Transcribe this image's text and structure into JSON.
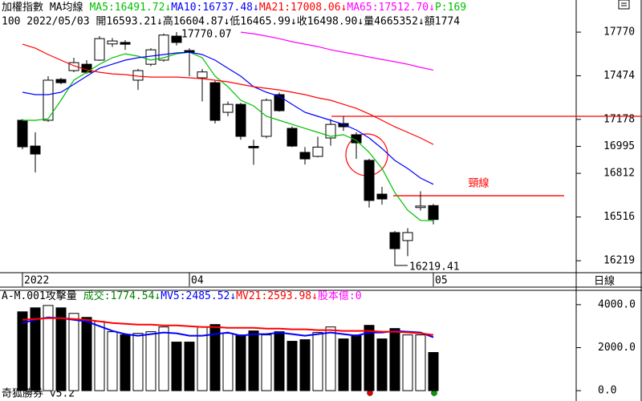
{
  "header": {
    "title": "加權指數 MA均線",
    "extra": "P:169",
    "quote": "100 2022/05/03 開16593.21↓高16604.87↓低16465.99↓收16498.90↓量4665352↓額1774",
    "period": "日線",
    "footer": "奇狐勝券 v5.2"
  },
  "chart_data": [
    {
      "type": "candlestick",
      "categories": [
        "2022",
        null,
        null,
        null,
        null,
        null,
        null,
        null,
        null,
        null,
        null,
        null,
        null,
        "04",
        null,
        null,
        null,
        null,
        null,
        null,
        null,
        null,
        null,
        null,
        null,
        null,
        null,
        null,
        null,
        null,
        null,
        null,
        "05"
      ],
      "open": [
        17172,
        16997,
        17172,
        17449,
        17509,
        17552,
        17580,
        17690,
        17700,
        17444,
        17552,
        17580,
        17743,
        17645,
        17460,
        17427,
        17226,
        17280,
        16995,
        17063,
        17346,
        17117,
        16954,
        16927,
        17052,
        17150,
        17074,
        16900,
        16671,
        16410,
        16356,
        16580,
        16593.21
      ],
      "high": [
        17180,
        17090,
        17471,
        17460,
        17596,
        17580,
        17743,
        17730,
        17716,
        17520,
        17661,
        17760,
        17770.07,
        17660,
        17520,
        17440,
        17300,
        17290,
        17040,
        17320,
        17360,
        17130,
        16990,
        17060,
        17180,
        17200,
        17090,
        16910,
        16720,
        16420,
        16440,
        16690,
        16604.87
      ],
      "low": [
        16975,
        16818,
        17160,
        17416,
        17498,
        17487,
        17575,
        17670,
        17650,
        17378,
        17540,
        17570,
        17680,
        17471,
        17300,
        17150,
        17200,
        17040,
        16870,
        17050,
        17230,
        16990,
        16872,
        16920,
        17000,
        17100,
        16910,
        16580,
        16600,
        16219.41,
        16250,
        16560,
        16465.99
      ],
      "close": [
        16992,
        16943,
        17444,
        17427,
        17563,
        17498,
        17726,
        17710,
        17688,
        17509,
        17650,
        17750,
        17700,
        17634,
        17500,
        17172,
        17280,
        17063,
        16985,
        17308,
        17237,
        16997,
        16910,
        16990,
        17144,
        17128,
        17019,
        16628,
        16638,
        16301,
        16410,
        16590,
        16498.9
      ],
      "up_color": "#ffffff",
      "down_color": "#000000",
      "series": [
        {
          "name": "MA5:16491.72↓",
          "color": "#00c000",
          "values": [
            17172,
            17172,
            17182,
            17308,
            17444,
            17498,
            17552,
            17596,
            17623,
            17607,
            17580,
            17596,
            17623,
            17634,
            17596,
            17471,
            17400,
            17308,
            17270,
            17199,
            17172,
            17144,
            17117,
            17090,
            17063,
            17074,
            17036,
            16954,
            16845,
            16682,
            16562,
            16492,
            16491.72
          ]
        },
        {
          "name": "MA10:16737.48↓",
          "color": "#0000ff",
          "values": [
            17362,
            17346,
            17346,
            17362,
            17416,
            17471,
            17525,
            17552,
            17580,
            17596,
            17607,
            17618,
            17629,
            17634,
            17618,
            17580,
            17525,
            17471,
            17400,
            17362,
            17335,
            17280,
            17226,
            17199,
            17172,
            17144,
            17106,
            17052,
            16981,
            16900,
            16845,
            16780,
            16737.48
          ]
        },
        {
          "name": "MA21:17008.06↓",
          "color": "#ff0000",
          "values": [
            17688,
            17661,
            17618,
            17580,
            17542,
            17514,
            17498,
            17487,
            17482,
            17471,
            17465,
            17465,
            17465,
            17460,
            17454,
            17444,
            17433,
            17416,
            17400,
            17389,
            17378,
            17362,
            17346,
            17324,
            17308,
            17280,
            17253,
            17215,
            17172,
            17128,
            17090,
            17052,
            17008.06
          ]
        },
        {
          "name": "MA65:17512.70↓",
          "color": "#ff00ff",
          "values": [
            null,
            null,
            null,
            null,
            null,
            null,
            null,
            null,
            null,
            null,
            null,
            null,
            null,
            null,
            null,
            null,
            null,
            17770,
            17759,
            17743,
            17726,
            17705,
            17688,
            17672,
            17650,
            17634,
            17618,
            17601,
            17585,
            17569,
            17552,
            17531,
            17512.7
          ]
        }
      ],
      "ylim": [
        16138,
        17988
      ],
      "yticks": [
        17770,
        17474,
        17178,
        16995,
        16812,
        16516,
        16219
      ],
      "reference_lines": [
        {
          "value": 17199
        },
        {
          "value": 16660,
          "label": "頸線"
        }
      ]
    },
    {
      "type": "bar",
      "title": "A-M.001攻擊量",
      "total": "成交:1774.54↓",
      "capital": "股本億:0",
      "values": [
        3667,
        3852,
        3963,
        3852,
        3593,
        3408,
        3222,
        2741,
        2593,
        2667,
        2741,
        2963,
        2259,
        2259,
        2963,
        3074,
        2667,
        2593,
        2778,
        2593,
        2741,
        2296,
        2370,
        2704,
        2963,
        2407,
        2593,
        3037,
        2407,
        2889,
        2593,
        2593,
        1774.54
      ],
      "series": [
        {
          "name": "MV5:2485.52↓",
          "color": "#0000ff",
          "values": [
            3148,
            3297,
            3408,
            3371,
            3297,
            3222,
            3000,
            2778,
            2630,
            2556,
            2630,
            2704,
            2667,
            2556,
            2556,
            2630,
            2704,
            2556,
            2630,
            2630,
            2704,
            2630,
            2556,
            2630,
            2704,
            2630,
            2556,
            2704,
            2704,
            2778,
            2741,
            2704,
            2485.52
          ]
        },
        {
          "name": "MV21:2593.98↓",
          "color": "#ff0000",
          "values": [
            3297,
            3334,
            3371,
            3371,
            3334,
            3297,
            3222,
            3148,
            3111,
            3074,
            3074,
            3037,
            3037,
            3000,
            2963,
            2963,
            2926,
            2926,
            2926,
            2889,
            2889,
            2852,
            2852,
            2815,
            2815,
            2778,
            2778,
            2778,
            2741,
            2741,
            2704,
            2667,
            2593.98
          ]
        }
      ],
      "ylim": [
        -407,
        4667
      ],
      "yticks": [
        {
          "value": 4000,
          "label": "4000.0"
        },
        {
          "value": 2000,
          "label": "2000.0"
        },
        {
          "value": 0,
          "label": "0.0"
        }
      ]
    }
  ]
}
